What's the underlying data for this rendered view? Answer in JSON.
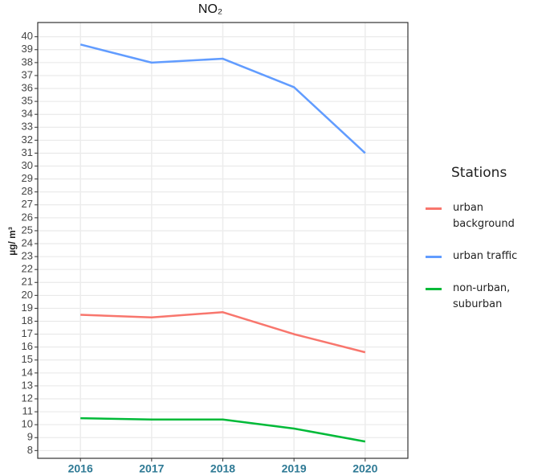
{
  "chart_data": {
    "type": "line",
    "title": "NO₂",
    "y_label": "µg/ m³",
    "x": [
      2016,
      2017,
      2018,
      2019,
      2020
    ],
    "xlim": [
      2015.4,
      2020.6
    ],
    "xticks": [
      2016,
      2017,
      2018,
      2019,
      2020
    ],
    "ylim": [
      7.4,
      41.1
    ],
    "yticks": [
      8,
      9,
      10,
      11,
      12,
      13,
      14,
      15,
      16,
      17,
      18,
      19,
      20,
      21,
      22,
      23,
      24,
      25,
      26,
      27,
      28,
      29,
      30,
      31,
      32,
      33,
      34,
      35,
      36,
      37,
      38,
      39,
      40
    ],
    "grid": true,
    "legend_title": "Stations",
    "legend_position": "right",
    "series": [
      {
        "name": "urban background",
        "color": "#f8766d",
        "values": [
          18.5,
          18.3,
          18.7,
          17.0,
          15.6
        ]
      },
      {
        "name": "urban traffic",
        "color": "#619cff",
        "values": [
          39.4,
          38.0,
          38.3,
          36.1,
          31.0
        ]
      },
      {
        "name": "non-urban, suburban",
        "color": "#00ba38",
        "values": [
          10.5,
          10.4,
          10.4,
          9.7,
          8.7
        ]
      }
    ]
  }
}
